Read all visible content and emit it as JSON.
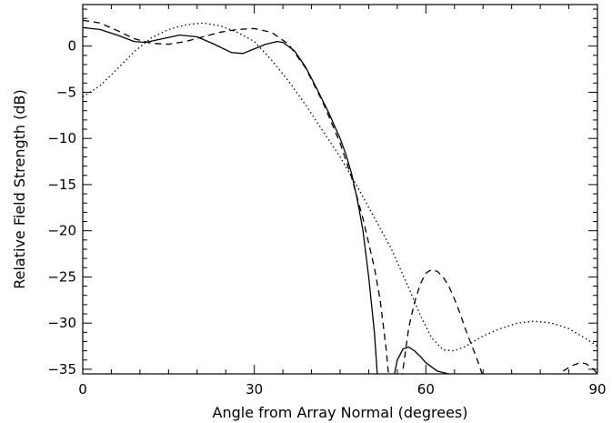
{
  "chart_data": {
    "type": "line",
    "title": "",
    "xlabel": "Angle from Array Normal (degrees)",
    "ylabel": "Relative Field Strength (dB)",
    "xlim": [
      0,
      90
    ],
    "ylim": [
      -35.5,
      4.5
    ],
    "xticks": [
      0,
      30,
      60,
      90
    ],
    "yticks": [
      0,
      -5,
      -10,
      -15,
      -20,
      -25,
      -30,
      -35
    ],
    "xtick_labels": [
      "0",
      "30",
      "60",
      "90"
    ],
    "ytick_labels": [
      "0",
      "−5",
      "−10",
      "−15",
      "−20",
      "−25",
      "−30",
      "−35"
    ],
    "grid": false,
    "series": [
      {
        "style": "solid",
        "color": "#000000",
        "x": [
          0,
          3,
          6,
          9,
          11,
          14,
          17,
          20,
          23,
          26,
          28,
          30,
          32,
          34,
          35,
          37,
          39,
          41,
          43,
          45,
          46,
          47,
          48,
          49,
          50,
          51,
          52,
          53,
          54,
          55,
          56,
          57,
          58,
          59,
          60,
          62,
          64,
          66
        ],
        "y": [
          2.0,
          1.8,
          1.2,
          0.5,
          0.4,
          0.8,
          1.2,
          1.0,
          0.2,
          -0.7,
          -0.8,
          -0.3,
          0.2,
          0.5,
          0.4,
          -0.5,
          -2.3,
          -4.7,
          -7.2,
          -10.0,
          -11.7,
          -13.8,
          -16.6,
          -20.0,
          -25.0,
          -31.0,
          -40.0,
          -40.0,
          -37.0,
          -34.0,
          -32.8,
          -32.6,
          -33.0,
          -33.6,
          -34.3,
          -35.2,
          -35.5,
          -36.0
        ]
      },
      {
        "style": "dashed",
        "color": "#000000",
        "x": [
          0,
          3,
          6,
          9,
          12,
          15,
          18,
          21,
          24,
          27,
          30,
          33,
          36,
          39,
          42,
          45,
          47,
          49,
          51,
          52,
          53,
          54,
          55,
          56,
          57,
          58,
          59,
          60,
          61,
          62,
          63,
          64,
          65,
          66,
          67,
          68,
          69,
          70,
          71,
          72,
          84,
          85,
          86,
          87,
          88,
          89,
          90
        ],
        "y": [
          2.8,
          2.5,
          1.7,
          0.8,
          0.3,
          0.2,
          0.5,
          1.0,
          1.5,
          1.8,
          1.9,
          1.5,
          0.2,
          -2.4,
          -6.1,
          -10.5,
          -14.2,
          -18.7,
          -24.0,
          -27.5,
          -32.5,
          -39.0,
          -40.0,
          -35.0,
          -30.5,
          -27.8,
          -25.8,
          -24.6,
          -24.2,
          -24.4,
          -25.0,
          -26.0,
          -27.4,
          -29.0,
          -30.8,
          -32.4,
          -34.0,
          -35.8,
          -38.0,
          -40.0,
          -35.2,
          -34.8,
          -34.5,
          -34.3,
          -34.4,
          -34.8,
          -35.5
        ]
      },
      {
        "style": "dotted",
        "color": "#000000",
        "x": [
          0,
          3,
          6,
          9,
          12,
          15,
          18,
          21,
          24,
          27,
          30,
          33,
          36,
          39,
          42,
          45,
          48,
          51,
          54,
          57,
          59,
          61,
          63,
          65,
          67,
          70,
          73,
          76,
          79,
          82,
          85,
          88,
          90
        ],
        "y": [
          -5.5,
          -4.3,
          -2.5,
          -0.6,
          0.9,
          1.8,
          2.3,
          2.5,
          2.2,
          1.5,
          0.5,
          -1.5,
          -3.8,
          -6.4,
          -9.2,
          -12.0,
          -15.2,
          -18.6,
          -22.0,
          -26.2,
          -29.1,
          -31.6,
          -32.9,
          -33.0,
          -32.5,
          -31.4,
          -30.6,
          -30.0,
          -29.8,
          -30.0,
          -30.6,
          -31.7,
          -32.5
        ]
      }
    ]
  }
}
